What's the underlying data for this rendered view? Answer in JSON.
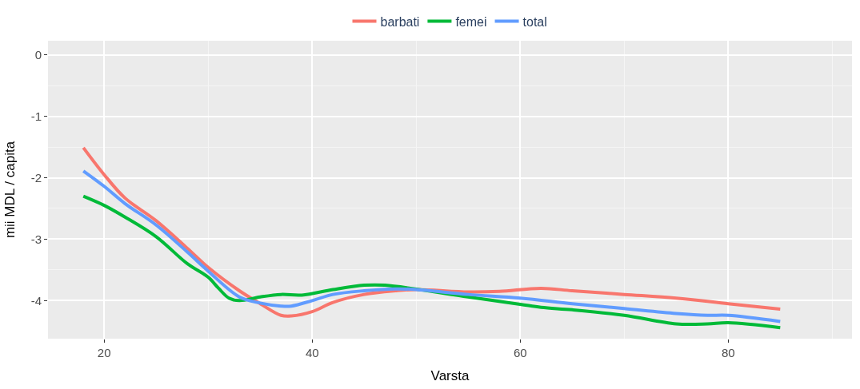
{
  "chart_data": {
    "type": "line",
    "xlabel": "Varsta",
    "ylabel": "mii MDL / capita",
    "xlim": [
      14.6,
      91.9
    ],
    "ylim": [
      -4.62,
      0.23
    ],
    "xticks": [
      20,
      40,
      60,
      80
    ],
    "yticks": [
      0,
      -1,
      -2,
      -3,
      -4
    ],
    "grid": true,
    "legend": "top",
    "marker": "none",
    "line_style": "solid",
    "series": [
      {
        "name": "barbati",
        "color": "#f8766d",
        "x": [
          18,
          20,
          22,
          25,
          28,
          30,
          33,
          35,
          37,
          38,
          40,
          42,
          45,
          48,
          50,
          55,
          58,
          62,
          65,
          70,
          75,
          80,
          85
        ],
        "values": [
          -1.51,
          -1.95,
          -2.33,
          -2.7,
          -3.15,
          -3.46,
          -3.84,
          -4.05,
          -4.24,
          -4.25,
          -4.18,
          -4.03,
          -3.9,
          -3.84,
          -3.82,
          -3.86,
          -3.85,
          -3.8,
          -3.84,
          -3.9,
          -3.96,
          -4.05,
          -4.14
        ]
      },
      {
        "name": "femei",
        "color": "#00ba38",
        "x": [
          18,
          20,
          22,
          25,
          28,
          30,
          31,
          32,
          33,
          35,
          37,
          39,
          42,
          45,
          47,
          55,
          60,
          62,
          65,
          70,
          75,
          78,
          80,
          85
        ],
        "values": [
          -2.3,
          -2.45,
          -2.64,
          -2.96,
          -3.4,
          -3.62,
          -3.8,
          -3.96,
          -4.0,
          -3.94,
          -3.9,
          -3.91,
          -3.82,
          -3.75,
          -3.75,
          -3.94,
          -4.06,
          -4.11,
          -4.15,
          -4.24,
          -4.38,
          -4.38,
          -4.36,
          -4.44
        ]
      },
      {
        "name": "total",
        "color": "#619cff",
        "x": [
          18,
          20,
          22,
          25,
          28,
          30,
          33,
          35,
          37,
          38,
          40,
          42,
          45,
          48,
          50,
          55,
          60,
          65,
          70,
          75,
          78,
          80,
          85
        ],
        "values": [
          -1.89,
          -2.14,
          -2.42,
          -2.77,
          -3.21,
          -3.52,
          -3.94,
          -4.04,
          -4.09,
          -4.09,
          -4.0,
          -3.9,
          -3.84,
          -3.81,
          -3.82,
          -3.9,
          -3.96,
          -4.05,
          -4.13,
          -4.21,
          -4.24,
          -4.24,
          -4.34
        ]
      }
    ]
  }
}
